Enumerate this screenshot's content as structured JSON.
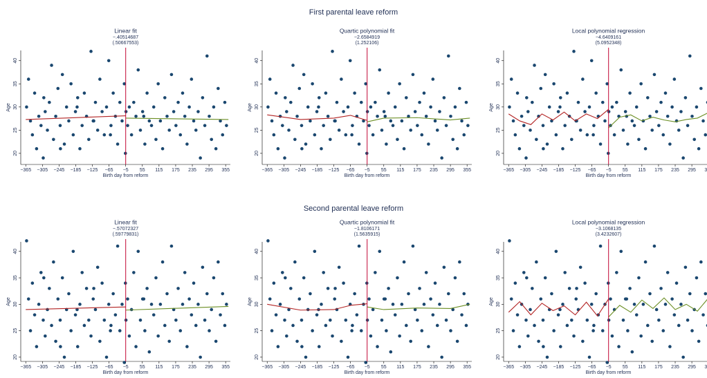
{
  "chart_data": [
    {
      "type": "scatter",
      "title": "First parental leave reform",
      "xlabel": "Birth day from reform",
      "ylabel": "Age",
      "point_color": "#1a476f",
      "cutoff": -5,
      "cutoff_color": "#c10534",
      "xlim": [
        -383,
        372
      ],
      "ylim": [
        17.6,
        42.2
      ],
      "xticks": [
        {
          "value": -365,
          "label": "−365"
        },
        {
          "value": -305,
          "label": "−305"
        },
        {
          "value": -245,
          "label": "−245"
        },
        {
          "value": -185,
          "label": "−185"
        },
        {
          "value": -125,
          "label": "−125"
        },
        {
          "value": -65,
          "label": "−65"
        },
        {
          "value": -5,
          "label": "−5"
        },
        55,
        115,
        175,
        235,
        295,
        355
      ],
      "yticks": [
        20,
        25,
        30,
        35,
        40
      ],
      "x": [
        -362,
        -355,
        -348,
        -341,
        -333,
        -326,
        -318,
        -310,
        -302,
        -295,
        -287,
        -280,
        -272,
        -265,
        -257,
        -249,
        -241,
        -233,
        -226,
        -218,
        -210,
        -202,
        -194,
        -186,
        -178,
        -170,
        -162,
        -154,
        -146,
        -138,
        -130,
        -122,
        -114,
        -106,
        -98,
        -90,
        -82,
        -74,
        -66,
        -58,
        -50,
        -42,
        -34,
        -26,
        -18,
        -10,
        -6,
        -4,
        2,
        8,
        16,
        24,
        32,
        40,
        48,
        56,
        64,
        72,
        80,
        88,
        96,
        104,
        112,
        120,
        128,
        136,
        144,
        152,
        160,
        168,
        176,
        184,
        192,
        200,
        208,
        216,
        224,
        232,
        240,
        248,
        256,
        264,
        272,
        280,
        288,
        296,
        304,
        312,
        320,
        328,
        336,
        344,
        352,
        358,
        -300,
        -240,
        -180,
        -120,
        -60,
        60
      ],
      "values": [
        30,
        36,
        27,
        24,
        33,
        21,
        28,
        26,
        19,
        29,
        25,
        31,
        39,
        23,
        28,
        34,
        26,
        37,
        22,
        30,
        27,
        35,
        24,
        29,
        32,
        21,
        26,
        33,
        28,
        23,
        42,
        27,
        31,
        25,
        36,
        29,
        24,
        30,
        40,
        26,
        33,
        28,
        22,
        31,
        27,
        35,
        20,
        29,
        26,
        30,
        24,
        31,
        28,
        38,
        25,
        29,
        22,
        33,
        27,
        26,
        30,
        23,
        35,
        27,
        21,
        32,
        28,
        25,
        37,
        29,
        26,
        31,
        24,
        33,
        28,
        22,
        30,
        36,
        27,
        25,
        29,
        19,
        32,
        26,
        41,
        28,
        23,
        30,
        21,
        34,
        27,
        24,
        31,
        26,
        32,
        21,
        30,
        27,
        24,
        28
      ],
      "panels": [
        {
          "title": "Linear fit",
          "estimate": "−.40514687",
          "se": "(.50667553)",
          "fits": [
            {
              "color": "#b22222",
              "x": [
                -365,
                -5
              ],
              "values": [
                27.3,
                28.1
              ]
            },
            {
              "color": "#6b8e23",
              "x": [
                -5,
                365
              ],
              "values": [
                27.6,
                27.3
              ]
            }
          ]
        },
        {
          "title": "Quartic polynomial fit",
          "estimate": "−2.6584919",
          "se": "(1.252106)",
          "fits": [
            {
              "color": "#b22222",
              "x": [
                -365,
                -245,
                -125,
                -65,
                -5
              ],
              "values": [
                28.3,
                27.3,
                27.6,
                28.2,
                27.1
              ]
            },
            {
              "color": "#6b8e23",
              "x": [
                -5,
                55,
                175,
                295,
                365
              ],
              "values": [
                26.8,
                27.6,
                27.7,
                27.2,
                27.6
              ]
            }
          ]
        },
        {
          "title": "Local polynomial regression",
          "estimate": "−4.6409161",
          "se": "(5.0952348)",
          "fits": [
            {
              "color": "#b22222",
              "x": [
                -365,
                -325,
                -285,
                -245,
                -205,
                -165,
                -125,
                -85,
                -45,
                -5
              ],
              "values": [
                28.5,
                27.0,
                26.2,
                28.5,
                27.2,
                28.9,
                27.0,
                28.5,
                27.5,
                29.5
              ]
            },
            {
              "color": "#6b8e23",
              "x": [
                -5,
                35,
                75,
                115,
                155,
                195,
                235,
                275,
                315,
                355
              ],
              "values": [
                25.5,
                27.8,
                28.3,
                27.0,
                27.8,
                27.2,
                26.8,
                27.3,
                27.6,
                28.8
              ]
            }
          ]
        }
      ]
    },
    {
      "type": "scatter",
      "title": "Second parental leave reform",
      "xlabel": "Birth day from reform",
      "ylabel": "Age",
      "point_color": "#1a476f",
      "cutoff": -5,
      "cutoff_color": "#c10534",
      "xlim": [
        -383,
        372
      ],
      "ylim": [
        19.2,
        41.8
      ],
      "xticks": [
        {
          "value": -365,
          "label": "−365"
        },
        {
          "value": -305,
          "label": "−305"
        },
        {
          "value": -245,
          "label": "−245"
        },
        {
          "value": -185,
          "label": "−185"
        },
        {
          "value": -125,
          "label": "−125"
        },
        {
          "value": -65,
          "label": "−65"
        },
        {
          "value": -5,
          "label": "−5"
        },
        55,
        115,
        175,
        235,
        295,
        355
      ],
      "yticks": [
        20,
        25,
        30,
        35,
        40
      ],
      "x": [
        -362,
        -355,
        -348,
        -341,
        -333,
        -326,
        -318,
        -310,
        -302,
        -295,
        -287,
        -280,
        -272,
        -265,
        -257,
        -249,
        -241,
        -233,
        -226,
        -218,
        -210,
        -202,
        -194,
        -186,
        -178,
        -170,
        -162,
        -154,
        -146,
        -138,
        -130,
        -122,
        -114,
        -106,
        -98,
        -90,
        -82,
        -74,
        -66,
        -58,
        -50,
        -42,
        -34,
        -26,
        -18,
        -10,
        -6,
        -4,
        2,
        8,
        16,
        24,
        32,
        40,
        48,
        56,
        64,
        72,
        80,
        88,
        96,
        104,
        112,
        120,
        128,
        136,
        144,
        152,
        160,
        168,
        176,
        184,
        192,
        200,
        208,
        216,
        224,
        232,
        240,
        248,
        256,
        264,
        272,
        280,
        288,
        296,
        304,
        312,
        320,
        328,
        336,
        344,
        352,
        358,
        -300,
        -240,
        -180,
        -120,
        -60,
        60
      ],
      "values": [
        42,
        31,
        25,
        34,
        28,
        22,
        30,
        36,
        27,
        24,
        29,
        33,
        26,
        38,
        23,
        31,
        27,
        35,
        20,
        29,
        32,
        25,
        40,
        28,
        22,
        30,
        36,
        26,
        33,
        27,
        24,
        31,
        29,
        37,
        23,
        34,
        27,
        20,
        30,
        26,
        32,
        28,
        41,
        25,
        30,
        19,
        34,
        27,
        31,
        24,
        29,
        36,
        22,
        40,
        27,
        31,
        25,
        33,
        21,
        30,
        28,
        35,
        24,
        30,
        38,
        26,
        32,
        23,
        41,
        29,
        27,
        33,
        25,
        30,
        36,
        22,
        31,
        28,
        34,
        26,
        30,
        20,
        37,
        27,
        32,
        25,
        29,
        35,
        23,
        38,
        28,
        32,
        26,
        30,
        35,
        22,
        29,
        33,
        25,
        31
      ],
      "panels": [
        {
          "title": "Linear fit",
          "estimate": "−.57072327",
          "se": "(.59779831)",
          "fits": [
            {
              "color": "#b22222",
              "x": [
                -365,
                -5
              ],
              "values": [
                29.0,
                29.5
              ]
            },
            {
              "color": "#6b8e23",
              "x": [
                -5,
                365
              ],
              "values": [
                28.9,
                29.6
              ]
            }
          ]
        },
        {
          "title": "Quartic polynomial fit",
          "estimate": "−1.8106171",
          "se": "(1.5635915)",
          "fits": [
            {
              "color": "#b22222",
              "x": [
                -365,
                -245,
                -125,
                -65,
                -5
              ],
              "values": [
                30.0,
                28.9,
                29.0,
                29.8,
                30.1
              ]
            },
            {
              "color": "#6b8e23",
              "x": [
                -5,
                55,
                175,
                295,
                365
              ],
              "values": [
                29.5,
                29.0,
                29.3,
                29.2,
                30.0
              ]
            }
          ]
        },
        {
          "title": "Local polynomial regression",
          "estimate": "−3.1068135",
          "se": "(3.4232607)",
          "fits": [
            {
              "color": "#b22222",
              "x": [
                -365,
                -325,
                -285,
                -245,
                -205,
                -165,
                -125,
                -85,
                -45,
                -5
              ],
              "values": [
                28.5,
                30.5,
                28.0,
                30.2,
                28.8,
                29.7,
                28.0,
                30.4,
                27.8,
                31.0
              ]
            },
            {
              "color": "#6b8e23",
              "x": [
                -5,
                35,
                75,
                115,
                155,
                195,
                235,
                275,
                315,
                355
              ],
              "values": [
                27.6,
                29.8,
                28.5,
                30.8,
                29.2,
                31.2,
                29.0,
                30.0,
                28.7,
                31.2
              ]
            }
          ]
        }
      ]
    }
  ]
}
